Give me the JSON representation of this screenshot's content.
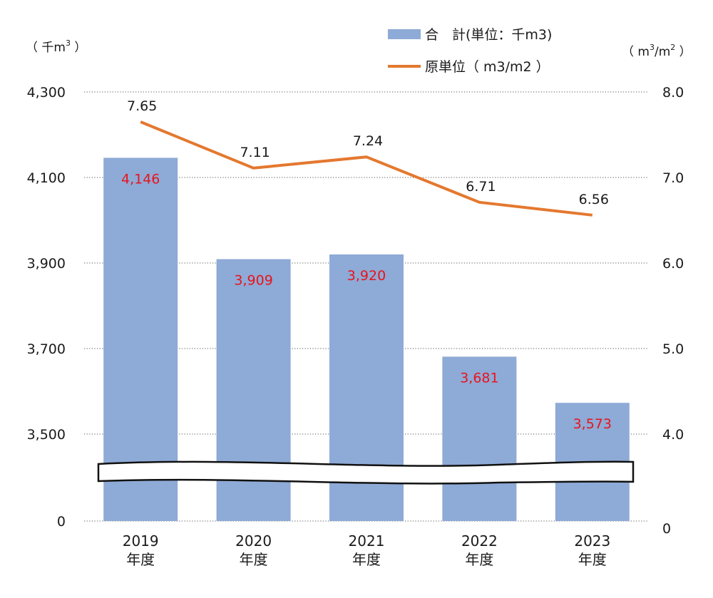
{
  "chart_data": {
    "type": "bar",
    "categories": [
      "2019\n年度",
      "2020\n年度",
      "2021\n年度",
      "2022\n年度",
      "2023\n年度"
    ],
    "series": [
      {
        "name": "合　計(単位：千m3)",
        "type": "bar",
        "axis": "left",
        "values": [
          4146,
          3909,
          3920,
          3681,
          3573
        ],
        "labels": [
          "4,146",
          "3,909",
          "3,920",
          "3,681",
          "3,573"
        ],
        "color": "#8eaad6",
        "label_color": "#e8141c"
      },
      {
        "name": "原単位（ m3/m2 ）",
        "type": "line",
        "axis": "right",
        "values": [
          7.65,
          7.11,
          7.24,
          6.71,
          6.56
        ],
        "labels": [
          "7.65",
          "7.11",
          "7.24",
          "6.71",
          "6.56"
        ],
        "color": "#e4782f"
      }
    ],
    "y_left": {
      "unit_label": "（ 千m³ ）",
      "ticks": [
        "0",
        "3,500",
        "3,700",
        "3,900",
        "4,100",
        "4,300"
      ],
      "range_visible": [
        3500,
        4300
      ],
      "axis_break": true
    },
    "y_right": {
      "unit_label": "（ m³/m² ）",
      "ticks": [
        "0",
        "4.0",
        "5.0",
        "6.0",
        "7.0",
        "8.0"
      ],
      "range_visible": [
        4.0,
        8.0
      ],
      "axis_break": true
    },
    "grid": "dotted horizontal",
    "legend_position": "top-right"
  }
}
